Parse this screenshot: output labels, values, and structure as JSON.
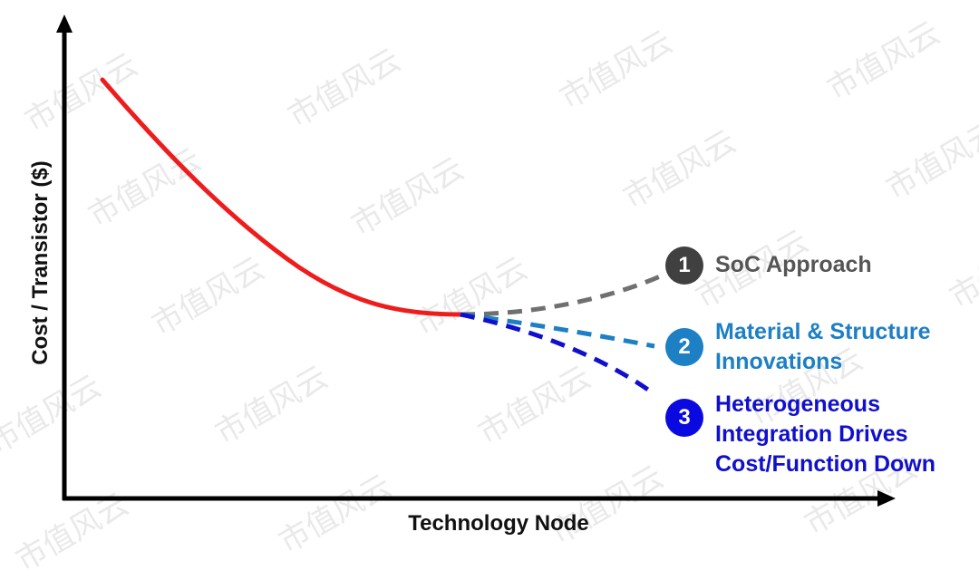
{
  "chart_data": {
    "type": "line",
    "xlabel": "Technology Node",
    "ylabel": "Cost / Transistor ($)",
    "main_curve": {
      "color": "#ee1c1c"
    },
    "branches": [
      {
        "number": "1",
        "lines": [
          "SoC Approach"
        ],
        "color": "#707070",
        "badge_color": "#404040"
      },
      {
        "number": "2",
        "lines": [
          "Material & Structure",
          "Innovations"
        ],
        "color": "#1d7fc4",
        "badge_color": "#1d7fc4"
      },
      {
        "number": "3",
        "lines": [
          "Heterogeneous",
          "Integration Drives",
          "Cost/Function Down"
        ],
        "color": "#1010cc",
        "badge_color": "#0a0ae0"
      }
    ]
  },
  "watermark": "市值风云"
}
